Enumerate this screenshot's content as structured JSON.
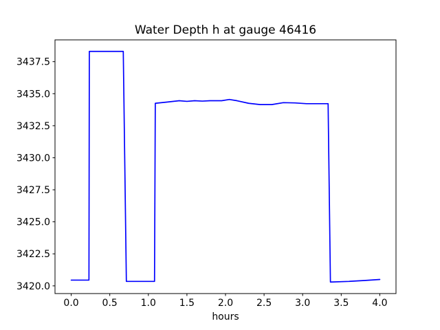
{
  "figure": {
    "background": "#ffffff",
    "text_color": "#000000",
    "spine_color": "#000000"
  },
  "chart_data": {
    "type": "line",
    "title": "Water Depth h at gauge 46416",
    "xlabel": "hours",
    "ylabel": "",
    "grid": false,
    "legend": null,
    "xlim": [
      -0.21,
      4.21
    ],
    "ylim": [
      3419.4,
      3439.2
    ],
    "x_ticks": [
      0.0,
      0.5,
      1.0,
      1.5,
      2.0,
      2.5,
      3.0,
      3.5,
      4.0
    ],
    "x_tick_labels": [
      "0.0",
      "0.5",
      "1.0",
      "1.5",
      "2.0",
      "2.5",
      "3.0",
      "3.5",
      "4.0"
    ],
    "y_ticks": [
      3420.0,
      3422.5,
      3425.0,
      3427.5,
      3430.0,
      3432.5,
      3435.0,
      3437.5
    ],
    "y_tick_labels": [
      "3420.0",
      "3422.5",
      "3425.0",
      "3427.5",
      "3430.0",
      "3432.5",
      "3435.0",
      "3437.5"
    ],
    "series": [
      {
        "name": "h",
        "color": "#0000ff",
        "line_width": 1.7,
        "points": [
          [
            0.0,
            3420.45
          ],
          [
            0.23,
            3420.45
          ],
          [
            0.235,
            3438.3
          ],
          [
            0.675,
            3438.3
          ],
          [
            0.715,
            3420.35
          ],
          [
            1.08,
            3420.35
          ],
          [
            1.09,
            3434.25
          ],
          [
            1.25,
            3434.35
          ],
          [
            1.4,
            3434.45
          ],
          [
            1.5,
            3434.4
          ],
          [
            1.6,
            3434.45
          ],
          [
            1.7,
            3434.42
          ],
          [
            1.8,
            3434.45
          ],
          [
            1.95,
            3434.45
          ],
          [
            2.05,
            3434.55
          ],
          [
            2.15,
            3434.45
          ],
          [
            2.3,
            3434.25
          ],
          [
            2.45,
            3434.15
          ],
          [
            2.6,
            3434.15
          ],
          [
            2.75,
            3434.3
          ],
          [
            2.9,
            3434.28
          ],
          [
            3.05,
            3434.22
          ],
          [
            3.2,
            3434.22
          ],
          [
            3.33,
            3434.22
          ],
          [
            3.36,
            3420.3
          ],
          [
            3.6,
            3420.35
          ],
          [
            3.8,
            3420.42
          ],
          [
            4.0,
            3420.5
          ]
        ]
      }
    ]
  }
}
